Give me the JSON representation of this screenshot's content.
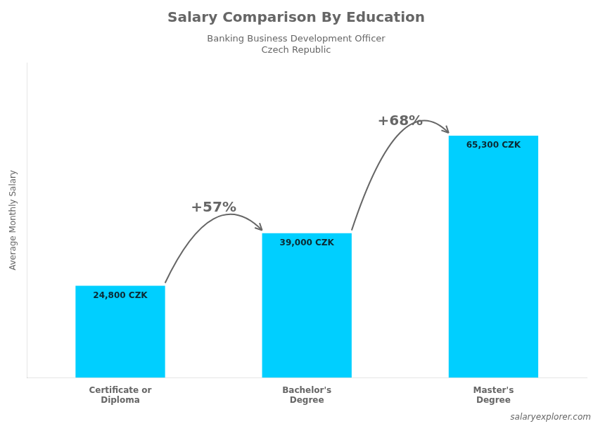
{
  "chart_data": {
    "type": "bar",
    "title": "Salary Comparison By Education",
    "subtitle": [
      "Banking Business Development Officer",
      "Czech Republic"
    ],
    "watermark": "salaryexplorer.com",
    "ylabel": "Average Monthly Salary",
    "categories": [
      "Certificate or\nDiploma",
      "Bachelor's\nDegree",
      "Master's\nDegree"
    ],
    "values": [
      24800,
      39000,
      65300
    ],
    "value_labels": [
      "24,800 CZK",
      "39,000 CZK",
      "65,300 CZK"
    ],
    "data_labels": true,
    "annotations": [
      "+57%",
      "+68%"
    ],
    "color": "#00CFFF",
    "ylim": [
      0,
      85000
    ],
    "tick_labels": "x",
    "grid": false
  }
}
